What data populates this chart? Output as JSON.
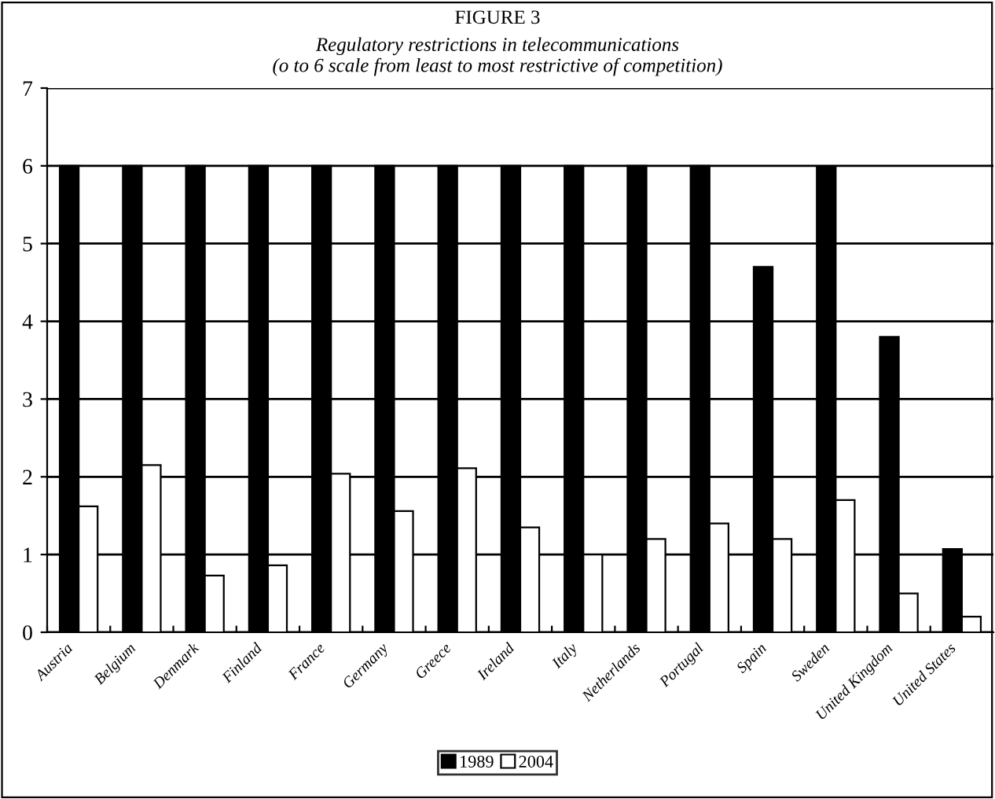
{
  "chart_data": {
    "type": "bar",
    "title": "FIGURE 3",
    "subtitle": "Regulatory restrictions in telecommunications\n(o to 6 scale from least to most restrictive of competition)",
    "categories": [
      "Austria",
      "Belgium",
      "Denmark",
      "Finland",
      "France",
      "Germany",
      "Greece",
      "Ireland",
      "Italy",
      "Netherlands",
      "Portugal",
      "Spain",
      "Sweden",
      "United Kingdom",
      "United States"
    ],
    "series": [
      {
        "name": "1989",
        "color": "#000000",
        "values": [
          6,
          6,
          6,
          6,
          6,
          6,
          6,
          6,
          6,
          6,
          6,
          4.7,
          5.98,
          3.8,
          1.07
        ]
      },
      {
        "name": "2004",
        "color": "#ffffff",
        "values": [
          1.62,
          2.15,
          0.73,
          0.86,
          2.04,
          1.56,
          2.11,
          1.35,
          1.0,
          1.2,
          1.4,
          1.2,
          1.7,
          0.5,
          0.2
        ]
      }
    ],
    "ylim": [
      0,
      7
    ],
    "yticks": [
      0,
      1,
      2,
      3,
      4,
      5,
      6,
      7
    ],
    "grid": "y",
    "legend": "bottom"
  }
}
